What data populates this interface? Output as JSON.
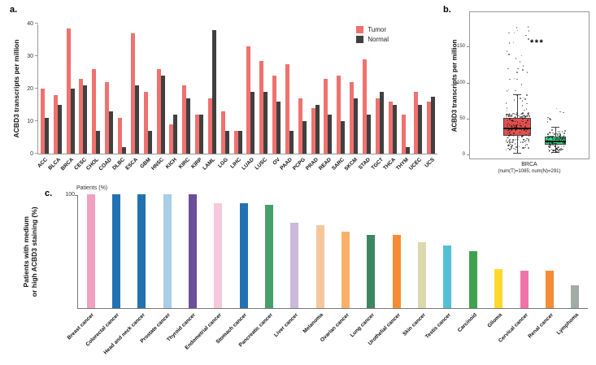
{
  "panels": {
    "a": {
      "label": "a.",
      "ylabel": "ACBD3 transcripts per million"
    },
    "b": {
      "label": "b.",
      "ylabel": "ACBD3 transcripts per million",
      "significance": "***",
      "xlabel_line1": "BRCA",
      "xlabel_line2": "(num(T)=1085; num(N)=291)"
    },
    "c": {
      "label": "c.",
      "ytop_label": "Patients (%)",
      "ylabel_line1": "Patients with medium",
      "ylabel_line2": "or high ACBD3 staining (%)"
    }
  },
  "legend": {
    "tumor": "Tumor",
    "normal": "Normal"
  },
  "chart_data": [
    {
      "id": "a",
      "type": "bar",
      "title": "",
      "ylabel": "ACBD3 transcripts per million",
      "ylim": [
        0,
        40
      ],
      "yticks": [
        0,
        10,
        20,
        30,
        40
      ],
      "grid": false,
      "legend_position": "top-right",
      "categories": [
        "ACC",
        "BLCA",
        "BRCA",
        "CESC",
        "CHOL",
        "COAD",
        "DLBC",
        "ESCA",
        "GBM",
        "HNSC",
        "KICH",
        "KIRC",
        "KIRP",
        "LAML",
        "LGG",
        "LIHC",
        "LUAD",
        "LUSC",
        "OV",
        "PAAD",
        "PCPG",
        "PRAD",
        "READ",
        "SARC",
        "SKCM",
        "STAD",
        "TGCT",
        "THCA",
        "THYM",
        "UCEC",
        "UCS"
      ],
      "series": [
        {
          "name": "Tumor",
          "color": "#F0716E",
          "values": [
            20,
            18,
            38.5,
            23,
            26,
            22,
            11,
            37,
            19,
            26,
            9,
            21,
            12,
            17,
            13,
            7,
            33,
            28.5,
            24,
            27.5,
            17,
            14,
            23,
            24,
            22,
            29,
            17,
            16,
            12,
            19,
            16
          ]
        },
        {
          "name": "Normal",
          "color": "#404040",
          "values": [
            11,
            15,
            20,
            21,
            7,
            13,
            2,
            21,
            7,
            24,
            12,
            17,
            12,
            38,
            7,
            7,
            19,
            19,
            16,
            7,
            10,
            15,
            12,
            10,
            17,
            12,
            19,
            15,
            2,
            15,
            17.5
          ]
        }
      ]
    },
    {
      "id": "b",
      "type": "box",
      "ylabel": "ACBD3 transcripts per million",
      "xlabel": "BRCA (num(T)=1085; num(N)=291)",
      "significance": "***",
      "ylim": [
        0,
        190
      ],
      "yticks": [
        0,
        50,
        100,
        150
      ],
      "groups": [
        {
          "name": "Tumor",
          "color": "#E4504E",
          "median": 38,
          "q1": 27,
          "q3": 52,
          "whisker_low": 3,
          "whisker_high": 85,
          "outlier_max": 178,
          "n": 1085
        },
        {
          "name": "Normal",
          "color": "#2FD987",
          "median": 20,
          "q1": 15,
          "q3": 26,
          "whisker_low": 4,
          "whisker_high": 40,
          "outlier_max": 65,
          "n": 291
        }
      ]
    },
    {
      "id": "c",
      "type": "bar",
      "ylabel": "Patients with medium or high ACBD3 staining (%)",
      "ylim": [
        0,
        100
      ],
      "yticks": [
        100
      ],
      "categories": [
        "Breast cancer",
        "Colorectal cancer",
        "Head and neck cancer",
        "Prostate cancer",
        "Thyroid cancer",
        "Endometrial cancer",
        "Stomach cancer",
        "Pancreatic cancer",
        "Liver cancer",
        "Melanoma",
        "Ovarian cancer",
        "Lung cancer",
        "Urothelial cancer",
        "Skin cancer",
        "Testis cancer",
        "Carcinoid",
        "Glioma",
        "Cervical cancer",
        "Renal cancer",
        "Lymphoma"
      ],
      "values": [
        100,
        100,
        100,
        100,
        100,
        92,
        92,
        91,
        75,
        73,
        67,
        64,
        64,
        58,
        55,
        50,
        34,
        33,
        33,
        20
      ],
      "colors": [
        "#F2A0C0",
        "#2272B2",
        "#2272B2",
        "#A8CEE8",
        "#6C4E9B",
        "#F6C8DC",
        "#2272B2",
        "#47A06A",
        "#CBB9DC",
        "#F6C79C",
        "#FBB069",
        "#3C8763",
        "#F58C35",
        "#DCD8AE",
        "#52C0D4",
        "#3FA24E",
        "#FFD92F",
        "#F273A8",
        "#F58C35",
        "#A2ACA6"
      ]
    }
  ]
}
